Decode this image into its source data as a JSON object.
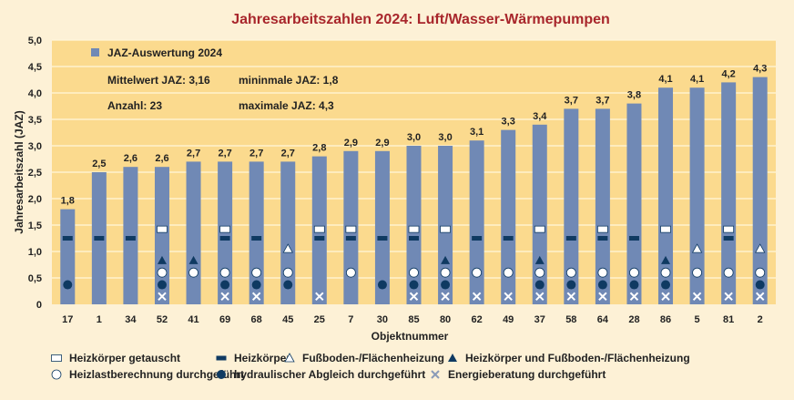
{
  "chart_data": {
    "type": "bar",
    "title": "Jahresarbeitszahlen 2024: Luft/Wasser-Wärmepumpen",
    "xlabel": "Objektnummer",
    "ylabel": "Jahresarbeitszahl (JAZ)",
    "ylim": [
      0,
      5
    ],
    "yticks": [
      "0",
      "0,5",
      "1,0",
      "1,5",
      "2,0",
      "2,5",
      "3,0",
      "3,5",
      "4,0",
      "4,5",
      "5,0"
    ],
    "grid": true,
    "categories": [
      "17",
      "1",
      "34",
      "52",
      "41",
      "69",
      "68",
      "45",
      "25",
      "7",
      "30",
      "85",
      "80",
      "62",
      "49",
      "37",
      "58",
      "64",
      "28",
      "86",
      "5",
      "81",
      "2"
    ],
    "values": [
      1.8,
      2.5,
      2.6,
      2.6,
      2.7,
      2.7,
      2.7,
      2.7,
      2.8,
      2.9,
      2.9,
      3.0,
      3.0,
      3.1,
      3.3,
      3.4,
      3.7,
      3.7,
      3.8,
      4.1,
      4.1,
      4.2,
      4.3
    ],
    "value_labels": [
      "1,8",
      "2,5",
      "2,6",
      "2,6",
      "2,7",
      "2,7",
      "2,7",
      "2,7",
      "2,8",
      "2,9",
      "2,9",
      "3,0",
      "3,0",
      "3,1",
      "3,3",
      "3,4",
      "3,7",
      "3,7",
      "3,8",
      "4,1",
      "4,1",
      "4,2",
      "4,3"
    ],
    "series_name": "JAZ-Auswertung 2024",
    "stats": {
      "mean": "Mittelwert JAZ: 3,16",
      "count": "Anzahl: 23",
      "min": "mininmale JAZ: 1,8",
      "max": "maximale JAZ: 4,3"
    },
    "marker_types": [
      {
        "key": "hk_getauscht",
        "label": "Heizkörper getauscht",
        "shape": "open-rect",
        "level": 1.42
      },
      {
        "key": "hk",
        "label": "Heizkörper",
        "shape": "filled-rect",
        "level": 1.25
      },
      {
        "key": "fbh",
        "label": "Fußboden-/Flächenheizung",
        "shape": "open-triangle",
        "level": 1.05
      },
      {
        "key": "hk_fbh",
        "label": "Heizkörper und Fußboden-/Flächenheizung",
        "shape": "filled-triangle",
        "level": 0.83
      },
      {
        "key": "heizlast",
        "label": "Heizlastberechnung durchgeführt",
        "shape": "open-circle",
        "level": 0.6
      },
      {
        "key": "abgleich",
        "label": "hydraulischer Abgleich durchgeführt",
        "shape": "filled-circle",
        "level": 0.37
      },
      {
        "key": "beratung",
        "label": "Energieberatung durchgeführt",
        "shape": "cross",
        "level": 0.15
      }
    ],
    "markers": [
      [
        "hk",
        "abgleich"
      ],
      [
        "hk"
      ],
      [
        "hk"
      ],
      [
        "hk_getauscht",
        "hk_fbh",
        "heizlast",
        "abgleich",
        "beratung"
      ],
      [
        "hk_fbh",
        "heizlast"
      ],
      [
        "hk_getauscht",
        "hk",
        "heizlast",
        "abgleich",
        "beratung"
      ],
      [
        "hk",
        "heizlast",
        "abgleich",
        "beratung"
      ],
      [
        "fbh",
        "heizlast",
        "abgleich"
      ],
      [
        "hk_getauscht",
        "hk",
        "beratung"
      ],
      [
        "hk_getauscht",
        "hk",
        "heizlast"
      ],
      [
        "hk",
        "abgleich"
      ],
      [
        "hk_getauscht",
        "hk",
        "heizlast",
        "abgleich",
        "beratung"
      ],
      [
        "hk_getauscht",
        "hk_fbh",
        "heizlast",
        "abgleich",
        "beratung"
      ],
      [
        "hk",
        "heizlast",
        "beratung"
      ],
      [
        "hk",
        "heizlast",
        "beratung"
      ],
      [
        "hk_getauscht",
        "hk_fbh",
        "heizlast",
        "abgleich",
        "beratung"
      ],
      [
        "hk",
        "heizlast",
        "abgleich",
        "beratung"
      ],
      [
        "hk_getauscht",
        "hk",
        "heizlast",
        "abgleich",
        "beratung"
      ],
      [
        "hk",
        "heizlast",
        "abgleich",
        "beratung"
      ],
      [
        "hk_getauscht",
        "hk_fbh",
        "heizlast",
        "abgleich",
        "beratung"
      ],
      [
        "fbh",
        "heizlast",
        "beratung"
      ],
      [
        "hk_getauscht",
        "hk",
        "heizlast",
        "beratung"
      ],
      [
        "fbh",
        "heizlast",
        "abgleich",
        "beratung"
      ]
    ],
    "colors": {
      "bar": "#7089b5",
      "marker": "#0f3a62",
      "plot_bg": "#fbda8e",
      "page_bg": "#fdf1d6",
      "title": "#a8262b"
    }
  }
}
